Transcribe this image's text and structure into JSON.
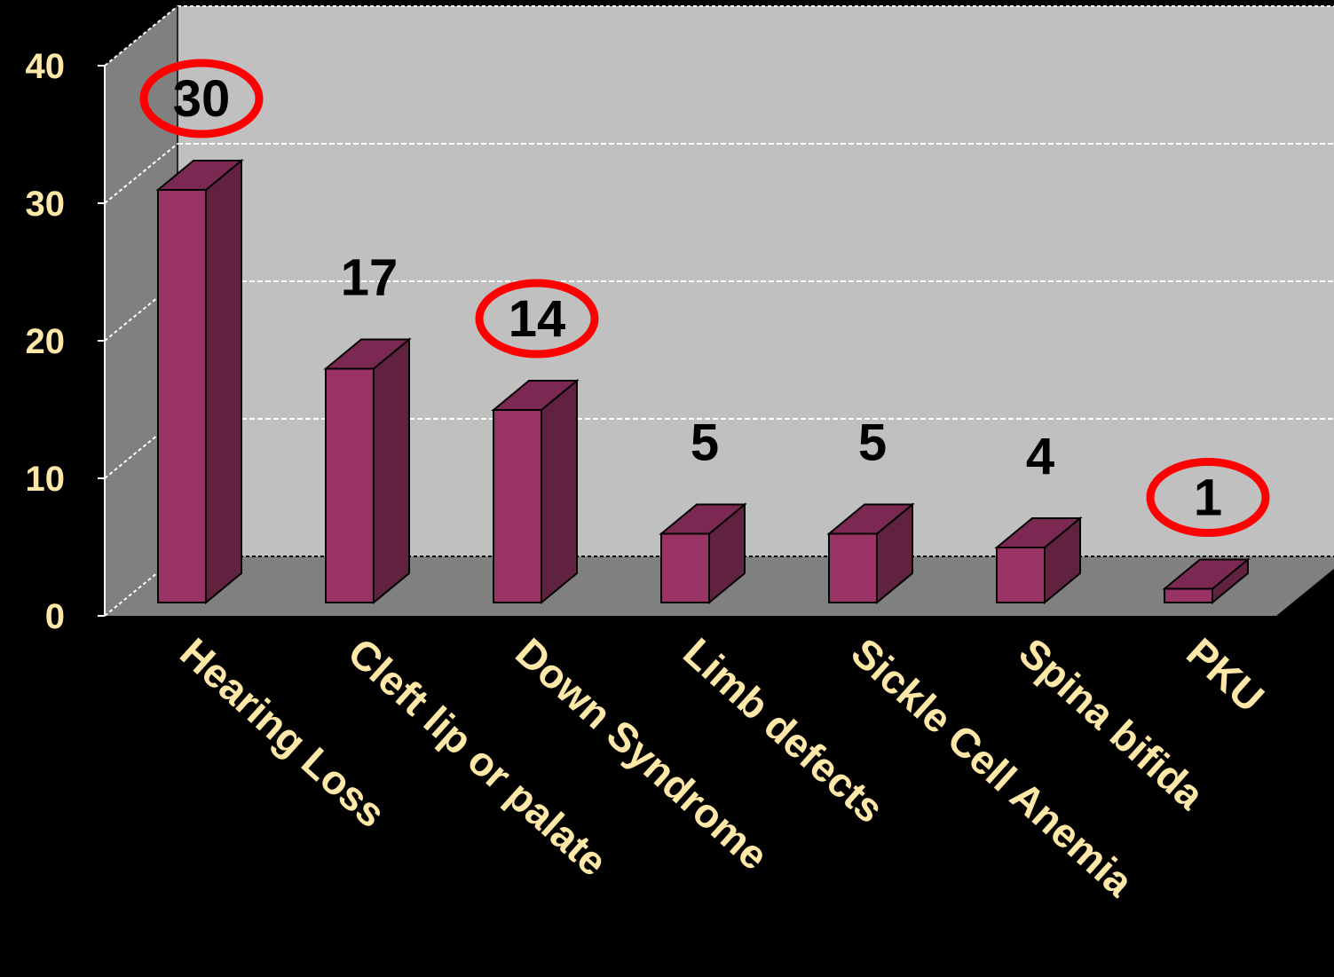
{
  "chart_data": {
    "type": "bar",
    "categories": [
      "Hearing Loss",
      "Cleft lip or palate",
      "Down Syndrome",
      "Limb defects",
      "Sickle Cell Anemia",
      "Spina bifida",
      "PKU"
    ],
    "values": [
      30,
      17,
      14,
      5,
      5,
      4,
      1
    ],
    "ylim": [
      0,
      40
    ],
    "yticks": [
      0,
      10,
      20,
      30,
      40
    ],
    "highlighted_categories": [
      "Hearing Loss",
      "Down Syndrome",
      "PKU"
    ],
    "grid": true,
    "style": "3d-bar"
  },
  "colors": {
    "background": "#000000",
    "back_wall": "#C0C0C0",
    "side_wall": "#808080",
    "floor": "#808080",
    "bar_front": "#993366",
    "bar_side": "#612240",
    "bar_top": "#7B2952",
    "label_text": "#FFE7A8",
    "highlight": "#FF0000"
  }
}
